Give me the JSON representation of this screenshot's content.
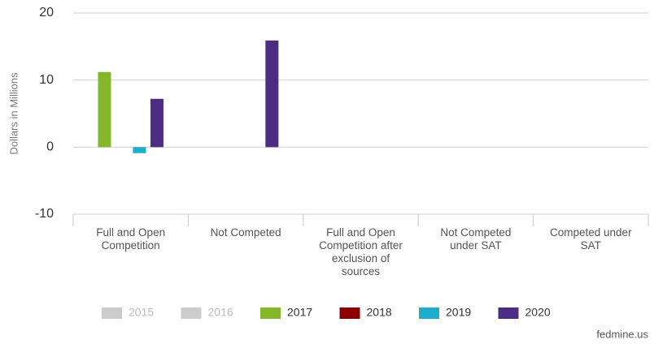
{
  "chart_data": {
    "type": "bar",
    "y_label": "Dollars in Millions",
    "source": "fedmine.us",
    "categories": [
      "Full and Open Competition",
      "Not Competed",
      "Full and Open Competition after exclusion of sources",
      "Not Competed under SAT",
      "Competed under SAT"
    ],
    "series": [
      {
        "name": "2015",
        "color": "#cccccc",
        "visible": false,
        "values": [
          null,
          null,
          null,
          null,
          null
        ]
      },
      {
        "name": "2016",
        "color": "#cccccc",
        "visible": false,
        "values": [
          null,
          null,
          null,
          null,
          null
        ]
      },
      {
        "name": "2017",
        "color": "#84b82a",
        "visible": true,
        "values": [
          11.2,
          null,
          null,
          null,
          null
        ]
      },
      {
        "name": "2018",
        "color": "#8b0000",
        "visible": true,
        "values": [
          null,
          null,
          null,
          null,
          null
        ]
      },
      {
        "name": "2019",
        "color": "#1eaecb",
        "visible": true,
        "values": [
          -0.9,
          null,
          null,
          null,
          null
        ]
      },
      {
        "name": "2020",
        "color": "#4b2e83",
        "visible": true,
        "values": [
          7.2,
          15.9,
          null,
          null,
          null
        ]
      }
    ],
    "ylim": [
      -10,
      20
    ],
    "yticks": [
      -10,
      0,
      10,
      20
    ],
    "grid": true,
    "legend": "bottom"
  }
}
